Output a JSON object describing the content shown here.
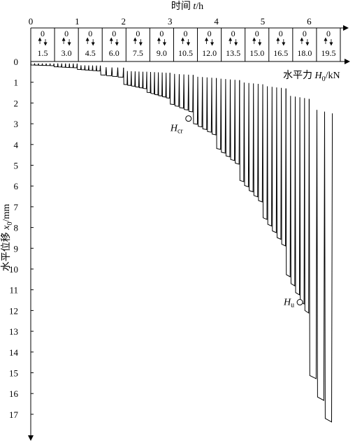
{
  "chart_data": {
    "type": "line",
    "title": "",
    "top_axis": {
      "label_prefix": "时间 ",
      "label_var": "t",
      "label_suffix": "/h",
      "ticks": [
        0,
        1,
        2,
        3,
        4,
        5,
        6
      ],
      "range": [
        0,
        6.65
      ]
    },
    "load_steps": {
      "zero_label": "0",
      "values": [
        "1.5",
        "3.0",
        "4.5",
        "6.0",
        "7.5",
        "9.0",
        "10.5",
        "12.0",
        "13.5",
        "15.0",
        "16.5",
        "18.0",
        "19.5"
      ]
    },
    "y_axis": {
      "label_prefix": "水平位移 ",
      "label_var": "x",
      "label_sub": "0",
      "label_suffix": "/mm",
      "ticks": [
        0,
        1,
        2,
        3,
        4,
        5,
        6,
        7,
        8,
        9,
        10,
        11,
        12,
        13,
        14,
        15,
        16,
        17
      ],
      "range": [
        0,
        18.2
      ],
      "inverted": true
    },
    "x_axis_label": {
      "prefix": "水平力 ",
      "var": "H",
      "sub": "0",
      "suffix": "/kN"
    },
    "annotations": [
      {
        "name": "cr",
        "var": "H",
        "sub": "cr",
        "t": 3.4,
        "x0": 2.75,
        "label_side": "left-below"
      },
      {
        "name": "u",
        "var": "H",
        "sub": "u",
        "t": 5.8,
        "x0": 11.6,
        "label_side": "left"
      }
    ],
    "segments": [
      {
        "load": 1.5,
        "t_start": 0.0,
        "t_end": 0.5,
        "x_low": 0.2,
        "x_high": 0.1,
        "cycles": 6
      },
      {
        "load": 3.0,
        "t_start": 0.5,
        "t_end": 1.0,
        "x_low": 0.3,
        "x_high": 0.1,
        "cycles": 6
      },
      {
        "load": 4.5,
        "t_start": 1.0,
        "t_end": 1.5,
        "x_low": 0.45,
        "x_high": 0.2,
        "cycles": 6
      },
      {
        "load": 6.0,
        "t_start": 1.5,
        "t_end": 2.0,
        "x_low": 0.75,
        "x_high": 0.3,
        "cycles": 4
      },
      {
        "load": 7.5,
        "t_start": 2.0,
        "t_end": 2.5,
        "x_low": 1.3,
        "x_high": 0.5,
        "cycles": 6
      },
      {
        "load": 9.0,
        "t_start": 2.5,
        "t_end": 3.0,
        "x_low": 1.75,
        "x_high": 0.55,
        "cycles": 6
      },
      {
        "load": 10.5,
        "t_start": 3.0,
        "t_end": 3.5,
        "x_low": 2.4,
        "x_high": 0.65,
        "cycles": 5
      },
      {
        "load": 12.0,
        "t_start": 3.5,
        "t_end": 4.0,
        "x_low": 3.5,
        "x_high": 0.8,
        "cycles": 5
      },
      {
        "load": 13.5,
        "t_start": 4.0,
        "t_end": 4.5,
        "x_low": 4.9,
        "x_high": 0.9,
        "cycles": 5
      },
      {
        "load": 15.0,
        "t_start": 4.5,
        "t_end": 5.0,
        "x_low": 6.7,
        "x_high": 1.1,
        "cycles": 5
      },
      {
        "load": 16.5,
        "t_start": 5.0,
        "t_end": 5.5,
        "x_low": 8.8,
        "x_high": 1.3,
        "cycles": 5
      },
      {
        "load": 18.0,
        "t_start": 5.5,
        "t_end": 6.0,
        "x_low": 12.0,
        "x_high": 1.8,
        "cycles": 5
      },
      {
        "load": 19.5,
        "t_start": 6.0,
        "t_end": 6.5,
        "x_low": 17.2,
        "x_high": 2.5,
        "cycles": 3
      }
    ]
  }
}
